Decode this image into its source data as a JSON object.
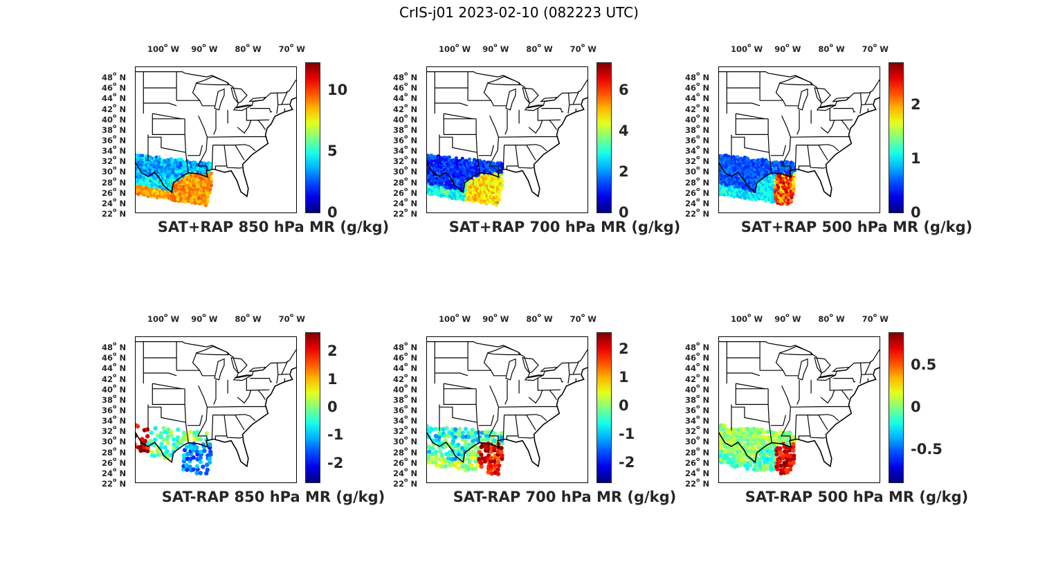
{
  "figure": {
    "title": "CrIS-j01 2023-02-10 (082223 UTC)"
  },
  "map_axes": {
    "lon_labels": [
      "100",
      "90",
      "80",
      "70"
    ],
    "lon_hemisphere": "W",
    "lat_labels": [
      "48",
      "46",
      "44",
      "42",
      "40",
      "38",
      "36",
      "34",
      "32",
      "30",
      "28",
      "26",
      "24",
      "22"
    ],
    "lat_hemisphere": "N",
    "extent": {
      "lon_min": -106,
      "lon_max": -69,
      "lat_min": 22,
      "lat_max": 50
    }
  },
  "colormap": "jet",
  "panels": [
    {
      "id": "sat-rap-sum-850",
      "title": "SAT+RAP 850 hPa MR (g/kg)",
      "colorbar_ticks": [
        "0",
        "5",
        "10"
      ],
      "cbar_range": [
        0,
        12.3
      ],
      "tick_values": [
        0,
        5,
        10
      ]
    },
    {
      "id": "sat-rap-sum-700",
      "title": "SAT+RAP 700 hPa MR (g/kg)",
      "colorbar_ticks": [
        "0",
        "2",
        "4",
        "6"
      ],
      "cbar_range": [
        0,
        7.4
      ],
      "tick_values": [
        0,
        2,
        4,
        6
      ]
    },
    {
      "id": "sat-rap-sum-500",
      "title": "SAT+RAP 500 hPa MR (g/kg)",
      "colorbar_ticks": [
        "0",
        "1",
        "2"
      ],
      "cbar_range": [
        0,
        2.8
      ],
      "tick_values": [
        0,
        1,
        2
      ]
    },
    {
      "id": "sat-rap-diff-850",
      "title": "SAT-RAP 850 hPa MR (g/kg)",
      "colorbar_ticks": [
        "-2",
        "-1",
        "0",
        "1",
        "2"
      ],
      "cbar_range": [
        -2.7,
        2.7
      ],
      "tick_values": [
        -2,
        -1,
        0,
        1,
        2
      ]
    },
    {
      "id": "sat-rap-diff-700",
      "title": "SAT-RAP 700 hPa MR (g/kg)",
      "colorbar_ticks": [
        "-2",
        "-1",
        "0",
        "1",
        "2"
      ],
      "cbar_range": [
        -2.7,
        2.6
      ],
      "tick_values": [
        -2,
        -1,
        0,
        1,
        2
      ]
    },
    {
      "id": "sat-rap-diff-500",
      "title": "SAT-RAP 500 hPa MR (g/kg)",
      "colorbar_ticks": [
        "-0.5",
        "0",
        "0.5"
      ],
      "cbar_range": [
        -0.9,
        0.9
      ],
      "tick_values": [
        -0.5,
        0,
        0.5
      ]
    }
  ]
}
